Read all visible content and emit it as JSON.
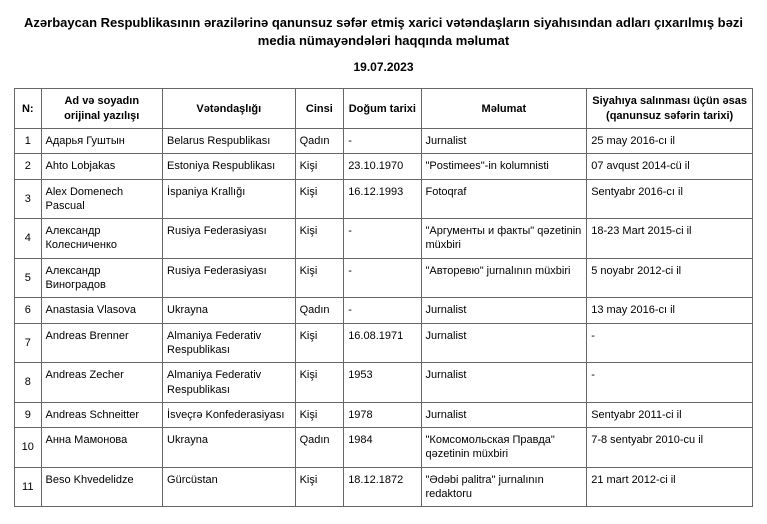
{
  "title": "Azərbaycan Respublikasının ərazilərinə qanunsuz səfər etmiş xarici vətəndaşların siyahısından adları çıxarılmış bəzi media nümayəndələri haqqında məlumat",
  "date": "19.07.2023",
  "columns": {
    "n": "N:",
    "name": "Ad və soyadın orijinal yazılışı",
    "nationality": "Vətəndaşlığı",
    "gender": "Cinsi",
    "dob": "Doğum tarixi",
    "info": "Məlumat",
    "reason": "Siyahıya salınması üçün əsas (qanunsuz səfərin tarixi)"
  },
  "rows": [
    {
      "n": "1",
      "name": "Адарья Гуштын",
      "nat": "Belarus Respublikası",
      "gen": "Qadın",
      "dob": "-",
      "info": "Jurnalist",
      "date": "25 may 2016-cı il"
    },
    {
      "n": "2",
      "name": "Ahto Lobjakas",
      "nat": "Estoniya Respublikası",
      "gen": "Kişi",
      "dob": "23.10.1970",
      "info": "\"Postimees\"-in kolumnisti",
      "date": "07 avqust 2014-cü il"
    },
    {
      "n": "3",
      "name": "Alex Domenech Pascual",
      "nat": "İspaniya Krallığı",
      "gen": "Kişi",
      "dob": "16.12.1993",
      "info": "Fotoqraf",
      "date": "Sentyabr 2016-cı il"
    },
    {
      "n": "4",
      "name": "Александр Колесниченко",
      "nat": "Rusiya Federasiyası",
      "gen": "Kişi",
      "dob": "-",
      "info": "\"Аргументы и факты\" qəzetinin müxbiri",
      "date": "18-23 Mart 2015-ci il"
    },
    {
      "n": "5",
      "name": "Александр Виноградов",
      "nat": "Rusiya Federasiyası",
      "gen": "Kişi",
      "dob": "-",
      "info": "\"Авторевю\" jurnalının müxbiri",
      "date": "5 noyabr 2012-ci il"
    },
    {
      "n": "6",
      "name": "Anastasia Vlasova",
      "nat": "Ukrayna",
      "gen": "Qadın",
      "dob": "-",
      "info": "Jurnalist",
      "date": "13 may 2016-cı il"
    },
    {
      "n": "7",
      "name": "Andreas Brenner",
      "nat": "Almaniya Federativ Respublikası",
      "gen": "Kişi",
      "dob": "16.08.1971",
      "info": "Jurnalist",
      "date": "-"
    },
    {
      "n": "8",
      "name": "Andreas Zecher",
      "nat": "Almaniya Federativ Respublikası",
      "gen": "Kişi",
      "dob": "1953",
      "info": "Jurnalist",
      "date": "-"
    },
    {
      "n": "9",
      "name": "Andreas Schneitter",
      "nat": "İsveçrə Konfederasiyası",
      "gen": "Kişi",
      "dob": "1978",
      "info": "Jurnalist",
      "date": "Sentyabr 2011-ci il"
    },
    {
      "n": "10",
      "name": "Анна Мамонова",
      "nat": "Ukrayna",
      "gen": "Qadın",
      "dob": "1984",
      "info": "\"Комсомольская Правда\" qəzetinin müxbiri",
      "date": "7-8 sentyabr 2010-cu il"
    },
    {
      "n": "11",
      "name": "Beso Khvedelidze",
      "nat": "Gürcüstan",
      "gen": "Kişi",
      "dob": "18.12.1872",
      "info": "\"Ədəbi palitra\" jurnalının redaktoru",
      "date": "21 mart 2012-ci il"
    }
  ]
}
